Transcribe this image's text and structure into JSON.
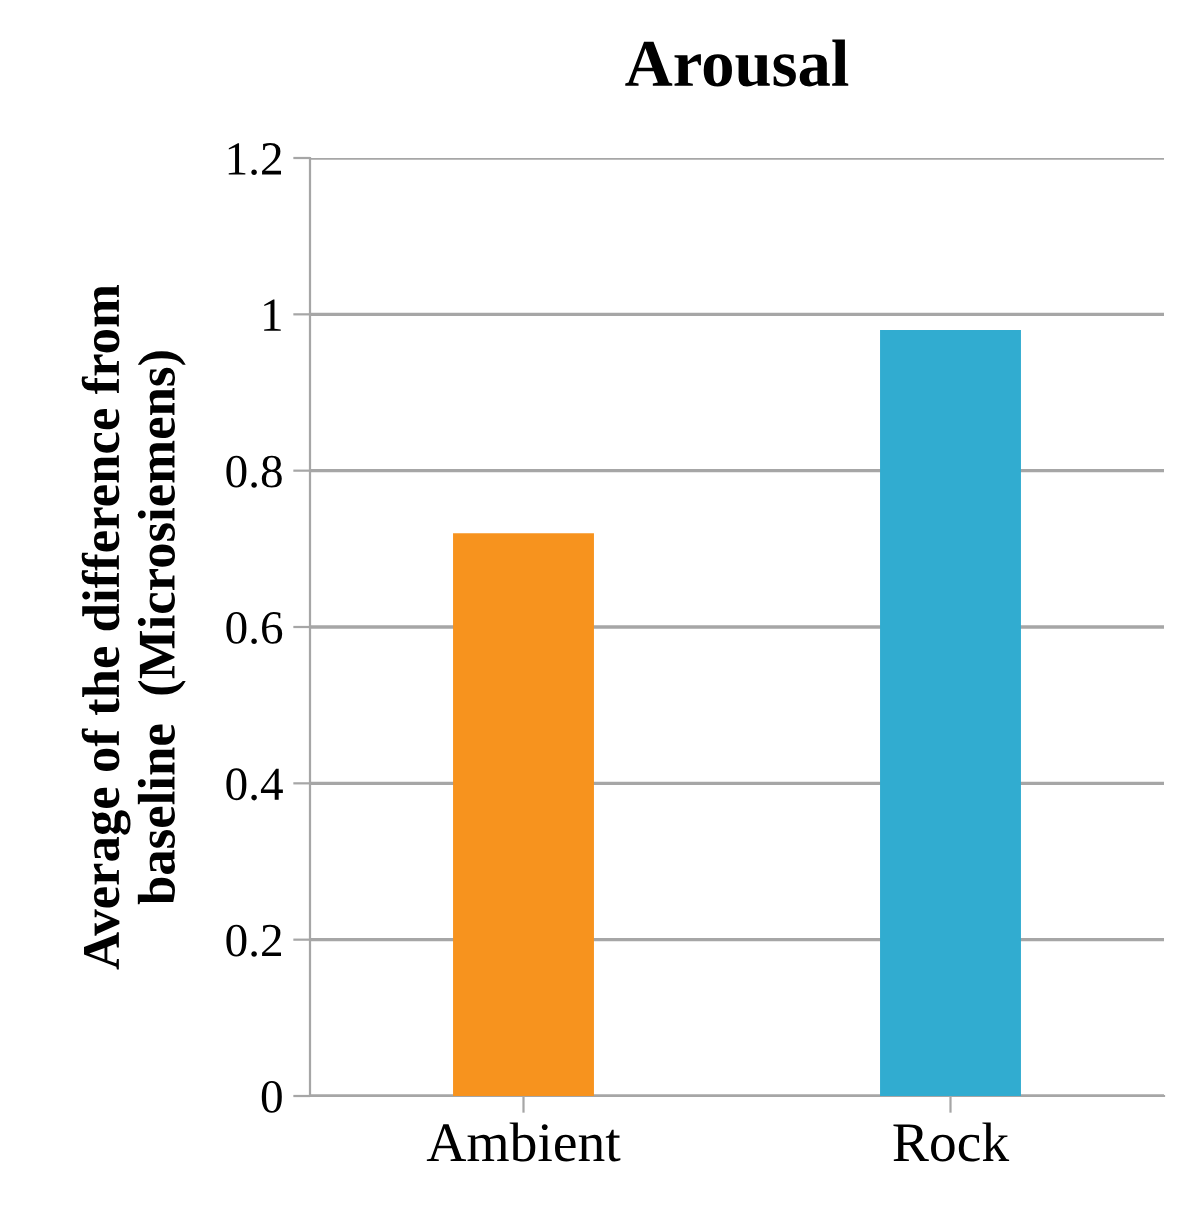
{
  "chart_data": {
    "type": "bar",
    "title": "Arousal",
    "ylabel": "Average of the difference from\nbaseline  (Microsiemens)",
    "categories": [
      "Ambient",
      "Rock"
    ],
    "values": [
      0.72,
      0.98
    ],
    "colors": [
      "#f7931e",
      "#31acd0"
    ],
    "ylim": [
      0,
      1.2
    ],
    "yticks": [
      0,
      {
        "value": 0.2,
        "label": "0.2"
      },
      {
        "value": 0.4,
        "label": "0.4"
      },
      {
        "value": 0.6,
        "label": "0.6"
      },
      {
        "value": 0.8,
        "label": "0.8"
      },
      1,
      {
        "value": 1.2,
        "label": "1.2"
      }
    ],
    "grid": "y",
    "legend": false
  }
}
